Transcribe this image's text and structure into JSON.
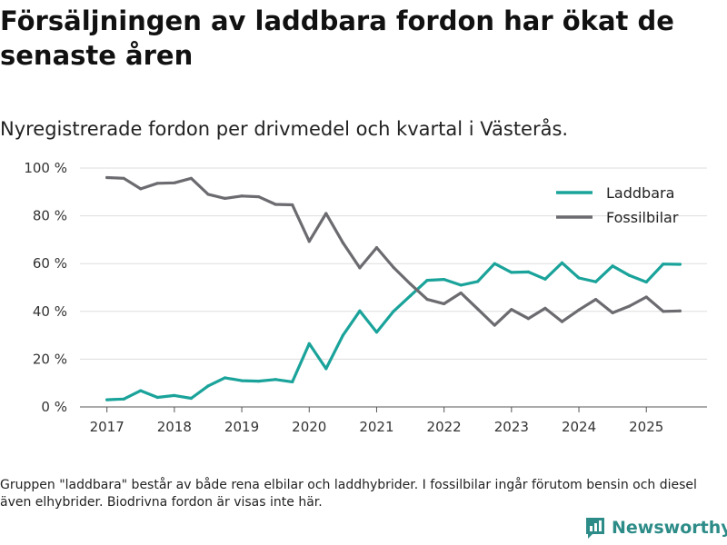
{
  "header": {
    "title": "Försäljningen av laddbara fordon har ökat de senaste åren",
    "subtitle": "Nyregistrerade fordon per drivmedel och kvartal i Västerås."
  },
  "footer": {
    "note": "Gruppen \"laddbara\" består av både rena elbilar och laddhybrider. I fossilbilar ingår förutom bensin och diesel även elhybrider. Biodrivna fordon är visas inte här.",
    "brand": "Newsworthy"
  },
  "colors": {
    "laddbara": "#1aa39a",
    "fossil": "#6b6b70",
    "brand": "#2d8c88"
  },
  "chart_data": {
    "type": "line",
    "title": "Försäljningen av laddbara fordon har ökat de senaste åren",
    "subtitle": "Nyregistrerade fordon per drivmedel och kvartal i Västerås.",
    "xlabel": "",
    "ylabel": "",
    "xlim": [
      2016.6,
      2025.9
    ],
    "ylim": [
      0,
      100
    ],
    "yticks": [
      0,
      20,
      40,
      60,
      80,
      100
    ],
    "ytick_labels": [
      "0 %",
      "20 %",
      "40 %",
      "60 %",
      "80 %",
      "100 %"
    ],
    "xticks": [
      2017,
      2018,
      2019,
      2020,
      2021,
      2022,
      2023,
      2024,
      2025
    ],
    "xtick_labels": [
      "2017",
      "2018",
      "2019",
      "2020",
      "2021",
      "2022",
      "2023",
      "2024",
      "2025"
    ],
    "grid": true,
    "legend_position": "top-right",
    "x": [
      2017.0,
      2017.25,
      2017.5,
      2017.75,
      2018.0,
      2018.25,
      2018.5,
      2018.75,
      2019.0,
      2019.25,
      2019.5,
      2019.75,
      2020.0,
      2020.25,
      2020.5,
      2020.75,
      2021.0,
      2021.25,
      2021.5,
      2021.75,
      2022.0,
      2022.25,
      2022.5,
      2022.75,
      2023.0,
      2023.25,
      2023.5,
      2023.75,
      2024.0,
      2024.25,
      2024.5,
      2024.75,
      2025.0,
      2025.25,
      2025.5
    ],
    "series": [
      {
        "name": "Laddbara",
        "values": [
          3,
          3.3,
          6.8,
          4,
          4.8,
          3.6,
          8.8,
          12.2,
          11,
          10.8,
          11.5,
          10.5,
          26.5,
          16,
          30,
          40.2,
          31.3,
          40,
          46.5,
          53,
          53.4,
          51,
          52.5,
          60,
          56.3,
          56.5,
          53.5,
          60.3,
          54,
          52.4,
          59,
          55,
          52.3,
          59.8,
          59.7
        ]
      },
      {
        "name": "Fossilbilar",
        "values": [
          96,
          95.7,
          91.3,
          93.6,
          93.8,
          95.7,
          89,
          87.3,
          88.3,
          88,
          84.8,
          84.6,
          69.3,
          81,
          68.7,
          58.2,
          66.7,
          58.4,
          51.5,
          45,
          43.2,
          47.7,
          41,
          34.2,
          40.8,
          37,
          41.3,
          35.7,
          40.6,
          45,
          39.4,
          42.2,
          46,
          40,
          40.2
        ]
      }
    ]
  }
}
